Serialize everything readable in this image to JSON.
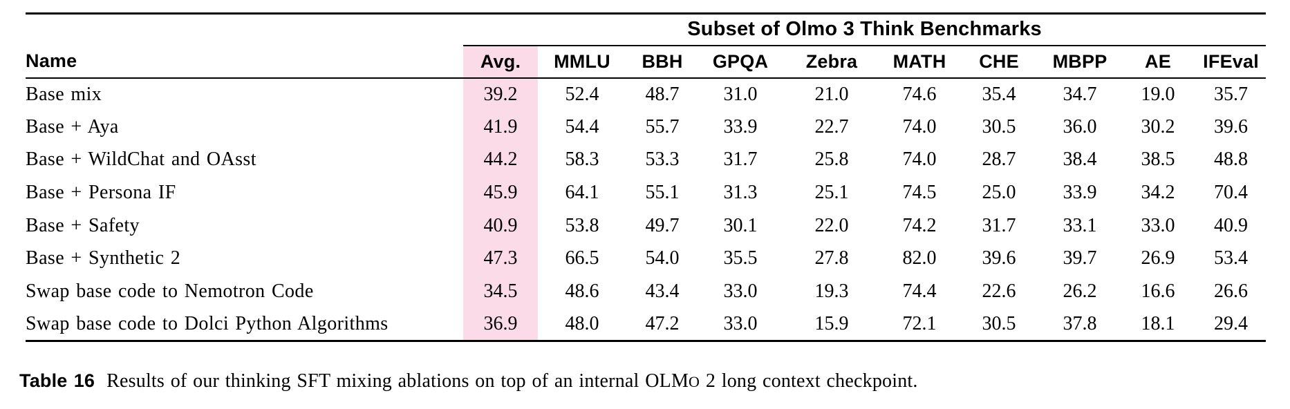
{
  "header": {
    "span_title": "Subset of Olmo 3 Think Benchmarks"
  },
  "table": {
    "columns": [
      "Name",
      "Avg.",
      "MMLU",
      "BBH",
      "GPQA",
      "Zebra",
      "MATH",
      "CHE",
      "MBPP",
      "AE",
      "IFEval"
    ],
    "highlight_column": "Avg.",
    "highlight_color": "#fadbe7",
    "rows": [
      {
        "name": "Base mix",
        "values": [
          "39.2",
          "52.4",
          "48.7",
          "31.0",
          "21.0",
          "74.6",
          "35.4",
          "34.7",
          "19.0",
          "35.7"
        ]
      },
      {
        "name": "Base + Aya",
        "values": [
          "41.9",
          "54.4",
          "55.7",
          "33.9",
          "22.7",
          "74.0",
          "30.5",
          "36.0",
          "30.2",
          "39.6"
        ]
      },
      {
        "name": "Base + WildChat and OAsst",
        "values": [
          "44.2",
          "58.3",
          "53.3",
          "31.7",
          "25.8",
          "74.0",
          "28.7",
          "38.4",
          "38.5",
          "48.8"
        ]
      },
      {
        "name": "Base + Persona IF",
        "values": [
          "45.9",
          "64.1",
          "55.1",
          "31.3",
          "25.1",
          "74.5",
          "25.0",
          "33.9",
          "34.2",
          "70.4"
        ]
      },
      {
        "name": "Base + Safety",
        "values": [
          "40.9",
          "53.8",
          "49.7",
          "30.1",
          "22.0",
          "74.2",
          "31.7",
          "33.1",
          "33.0",
          "40.9"
        ]
      },
      {
        "name": "Base + Synthetic 2",
        "values": [
          "47.3",
          "66.5",
          "54.0",
          "35.5",
          "27.8",
          "82.0",
          "39.6",
          "39.7",
          "26.9",
          "53.4"
        ]
      },
      {
        "name": "Swap base code to Nemotron Code",
        "values": [
          "34.5",
          "48.6",
          "43.4",
          "33.0",
          "19.3",
          "74.4",
          "22.6",
          "26.2",
          "16.6",
          "26.6"
        ]
      },
      {
        "name": "Swap base code to Dolci Python Algorithms",
        "values": [
          "36.9",
          "48.0",
          "47.2",
          "33.0",
          "15.9",
          "72.1",
          "30.5",
          "37.8",
          "18.1",
          "29.4"
        ]
      }
    ]
  },
  "caption": {
    "label": "Table 16",
    "prefix": "Results of our thinking SFT mixing ablations on top of an internal ",
    "olmo_caps": "OLM",
    "olmo_smallcap": "O",
    "suffix": " 2 long context checkpoint."
  }
}
